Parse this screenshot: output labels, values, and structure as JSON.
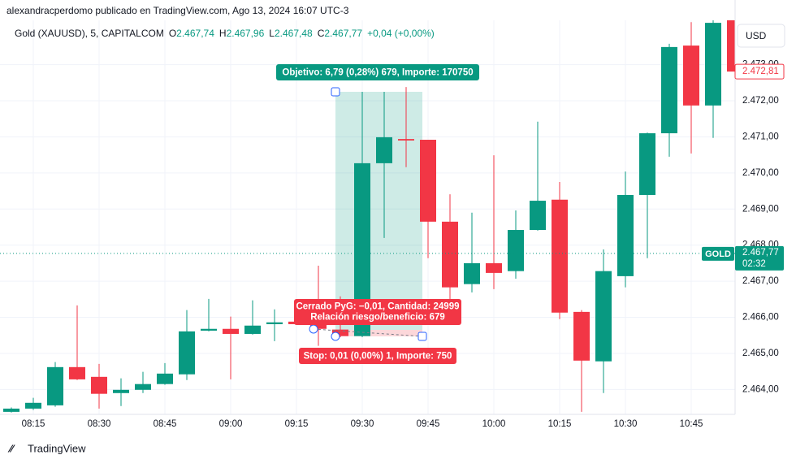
{
  "header": {
    "attribution": "alexandracperdomo publicado en TradingView.com, Ago 13, 2024 16:07 UTC-3",
    "logo": "TradingView"
  },
  "legend": {
    "symbol": "Gold (XAUUSD), 5, CAPITALCOM",
    "o_label": "O",
    "o": "2.467,74",
    "h_label": "H",
    "h": "2.467,96",
    "l_label": "L",
    "l": "2.467,48",
    "c_label": "C",
    "c": "2.467,77",
    "change": "+0,04 (+0,00%)"
  },
  "chart_data": {
    "type": "candlestick",
    "categories": [
      null,
      "08:15",
      null,
      null,
      "08:30",
      null,
      null,
      "08:45",
      null,
      null,
      "09:00",
      null,
      null,
      "09:15",
      null,
      null,
      "09:30",
      null,
      null,
      "09:45",
      null,
      null,
      "10:00",
      null,
      null,
      "10:15",
      null,
      null,
      "10:30",
      null,
      null,
      "10:45",
      null,
      null
    ],
    "open": [
      2463.38,
      2463.47,
      2463.56,
      2464.62,
      2464.35,
      2463.9,
      2463.99,
      2464.15,
      2464.42,
      2465.63,
      2465.68,
      2465.54,
      2465.81,
      2465.88,
      2465.84,
      2465.66,
      2465.48,
      2470.27,
      2470.94,
      2470.92,
      2468.65,
      2466.92,
      2467.5,
      2467.28,
      2468.42,
      2469.26,
      2466.15,
      2464.78,
      2467.14,
      2469.39,
      2471.1,
      2473.53,
      2471.87,
      2474.23
    ],
    "high": [
      2463.5,
      2463.77,
      2464.76,
      2466.33,
      2464.71,
      2464.31,
      2464.49,
      2464.73,
      2466.2,
      2466.51,
      2466.02,
      2466.47,
      2466.22,
      2466.2,
      2467.43,
      2466.58,
      2472.25,
      2472.25,
      2472.38,
      2470.92,
      2469.41,
      2468.9,
      2470.49,
      2468.96,
      2471.42,
      2469.75,
      2466.2,
      2467.88,
      2470.04,
      2471.12,
      2473.58,
      2474.18,
      2474.23,
      2474.23
    ],
    "low": [
      2463.36,
      2463.43,
      2463.52,
      2464.26,
      2463.47,
      2463.54,
      2463.9,
      2464.13,
      2464.26,
      2465.61,
      2464.28,
      2465.52,
      2465.34,
      2465.79,
      2465.21,
      2465.45,
      2465.45,
      2468.2,
      2470.16,
      2467.64,
      2466.24,
      2466.69,
      2466.78,
      2467.07,
      2468.4,
      2465.95,
      2463.38,
      2463.9,
      2466.83,
      2467.64,
      2470.45,
      2470.54,
      2470.97,
      2472.81
    ],
    "close": [
      2463.47,
      2463.63,
      2464.62,
      2464.28,
      2463.88,
      2463.99,
      2464.15,
      2464.44,
      2465.61,
      2465.68,
      2465.54,
      2465.77,
      2465.86,
      2465.81,
      2465.68,
      2465.48,
      2470.27,
      2470.99,
      2470.9,
      2468.65,
      2466.83,
      2467.5,
      2467.23,
      2468.42,
      2469.23,
      2466.13,
      2464.8,
      2467.28,
      2469.39,
      2471.1,
      2473.49,
      2471.87,
      2474.16,
      2472.81
    ],
    "up_color": "#089981",
    "down_color": "#f23645",
    "ylim": [
      2463.31,
      2474.23
    ],
    "yticks": [
      {
        "value": 2464,
        "label": "2.464,00"
      },
      {
        "value": 2465,
        "label": "2.465,00"
      },
      {
        "value": 2466,
        "label": "2.466,00"
      },
      {
        "value": 2467,
        "label": "2.467,00"
      },
      {
        "value": 2468,
        "label": "2.468,00"
      },
      {
        "value": 2469,
        "label": "2.469,00"
      },
      {
        "value": 2470,
        "label": "2.470,00"
      },
      {
        "value": 2471,
        "label": "2.471,00"
      },
      {
        "value": 2472,
        "label": "2.472,00"
      },
      {
        "value": 2473,
        "label": "2.473,00"
      }
    ],
    "currency": "USD",
    "last_price": {
      "value": 2472.81,
      "label": "2.472,81"
    },
    "symbol_price": {
      "name": "GOLD",
      "value": 2467.77,
      "label": "2.467,77",
      "countdown": "02:32"
    },
    "grid": true,
    "annotations": {
      "target": "Objetivo: 6,79 (0,28%) 679, Importe: 170750",
      "closed": "Cerrado PyG: −0,01, Cantidad: 24999",
      "ratio": "Relación riesgo/beneficio: 679",
      "stop": "Stop: 0,01 (0,00%) 1, Importe: 750"
    }
  }
}
